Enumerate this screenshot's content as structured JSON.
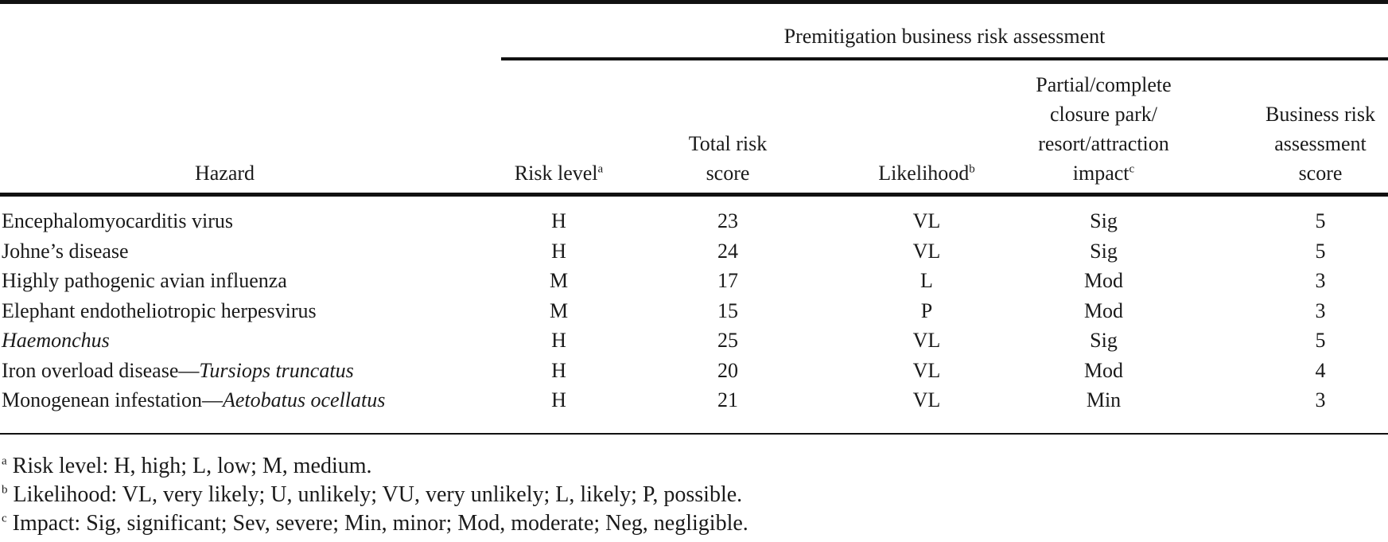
{
  "table": {
    "group_header": "Premitigation business risk assessment",
    "columns": {
      "hazard": [
        "Hazard"
      ],
      "risk_level": [
        "Risk level"
      ],
      "risk_level_note": "a",
      "total_risk": [
        "Total risk",
        "score"
      ],
      "likelihood": [
        "Likelihood"
      ],
      "likelihood_note": "b",
      "impact": [
        "Partial/complete",
        "closure park/",
        "resort/attraction",
        "impact"
      ],
      "impact_note": "c",
      "business_score": [
        "Business risk",
        "assessment",
        "score"
      ]
    },
    "rows": [
      {
        "hazard": "Encephalomyocarditis virus",
        "hazard_italic": "",
        "risk_level": "H",
        "total_risk": "23",
        "likelihood": "VL",
        "impact": "Sig",
        "business_score": "5"
      },
      {
        "hazard": "Johne’s disease",
        "hazard_italic": "",
        "risk_level": "H",
        "total_risk": "24",
        "likelihood": "VL",
        "impact": "Sig",
        "business_score": "5"
      },
      {
        "hazard": "Highly pathogenic avian influenza",
        "hazard_italic": "",
        "risk_level": "M",
        "total_risk": "17",
        "likelihood": "L",
        "impact": "Mod",
        "business_score": "3"
      },
      {
        "hazard": "Elephant endotheliotropic herpesvirus",
        "hazard_italic": "",
        "risk_level": "M",
        "total_risk": "15",
        "likelihood": "P",
        "impact": "Mod",
        "business_score": "3"
      },
      {
        "hazard": "",
        "hazard_italic": "Haemonchus",
        "risk_level": "H",
        "total_risk": "25",
        "likelihood": "VL",
        "impact": "Sig",
        "business_score": "5"
      },
      {
        "hazard": "Iron overload disease—",
        "hazard_italic": "Tursiops truncatus",
        "risk_level": "H",
        "total_risk": "20",
        "likelihood": "VL",
        "impact": "Mod",
        "business_score": "4"
      },
      {
        "hazard": "Monogenean infestation—",
        "hazard_italic": "Aetobatus ocellatus",
        "risk_level": "H",
        "total_risk": "21",
        "likelihood": "VL",
        "impact": "Min",
        "business_score": "3"
      }
    ]
  },
  "footnotes": [
    {
      "mark": "a",
      "text": " Risk level: H, high; L, low; M, medium."
    },
    {
      "mark": "b",
      "text": " Likelihood: VL, very likely; U, unlikely; VU, very unlikely; L, likely; P, possible."
    },
    {
      "mark": "c",
      "text": " Impact: Sig, significant; Sev, severe; Min, minor; Mod, moderate; Neg, negligible."
    }
  ]
}
